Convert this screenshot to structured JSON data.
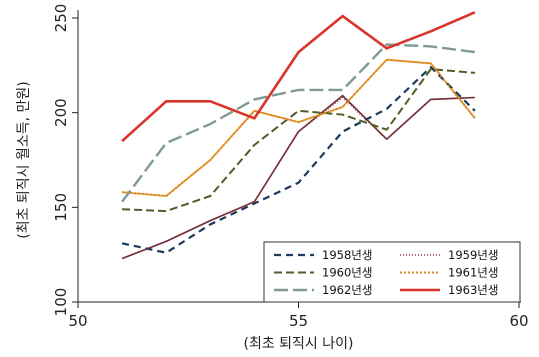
{
  "chart_data": {
    "type": "line",
    "xlabel": "(최초 퇴직시 나이)",
    "ylabel": "(최초 퇴직시 월소득, 만원)",
    "xlim": [
      50,
      60
    ],
    "ylim": [
      100,
      250
    ],
    "xticks": [
      "50",
      "55",
      "60"
    ],
    "yticks": [
      "100",
      "150",
      "200",
      "250"
    ],
    "x": [
      51,
      52,
      53,
      54,
      55,
      56,
      57,
      58,
      59
    ],
    "grid": false,
    "legend_position": "bottom-right",
    "legend_columns": 2,
    "series": [
      {
        "name": "1958년생",
        "color": "#1b3a5c",
        "dash": "7,5",
        "width": 2.2,
        "values": [
          131,
          126,
          141,
          152,
          163,
          190,
          202,
          224,
          201
        ]
      },
      {
        "name": "1959년생",
        "color": "#8f2d3a",
        "dash": "1,2",
        "width": 1.6,
        "values": [
          123,
          132,
          143,
          153,
          190,
          208,
          186,
          207,
          208
        ]
      },
      {
        "name": "1960년생",
        "color": "#4d5e26",
        "dash": "8,4",
        "width": 2.0,
        "values": [
          149,
          148,
          156,
          183,
          201,
          199,
          191,
          223,
          221
        ]
      },
      {
        "name": "1961년생",
        "color": "#e08a1e",
        "dash": "2,2",
        "width": 2.0,
        "values": [
          158,
          156,
          175,
          201,
          195,
          203,
          228,
          226,
          197
        ]
      },
      {
        "name": "1962년생",
        "color": "#7f9a93",
        "dash": "14,5",
        "width": 2.4,
        "values": [
          153,
          184,
          194,
          207,
          212,
          212,
          236,
          235,
          232
        ]
      },
      {
        "name": "1963년생",
        "color": "#d9342b",
        "dash": "",
        "width": 2.6,
        "values": [
          185,
          206,
          206,
          197,
          232,
          251,
          234,
          243,
          253
        ]
      }
    ],
    "extra_lines": [
      {
        "color": "#6a2c36",
        "width": 1.6,
        "values": [
          123,
          132,
          143,
          153,
          190,
          209,
          186,
          207,
          208
        ]
      },
      {
        "color": "#e08a1e",
        "width": 1.6,
        "values": [
          158,
          156,
          175,
          201,
          195,
          203,
          228,
          226,
          197
        ]
      }
    ]
  }
}
